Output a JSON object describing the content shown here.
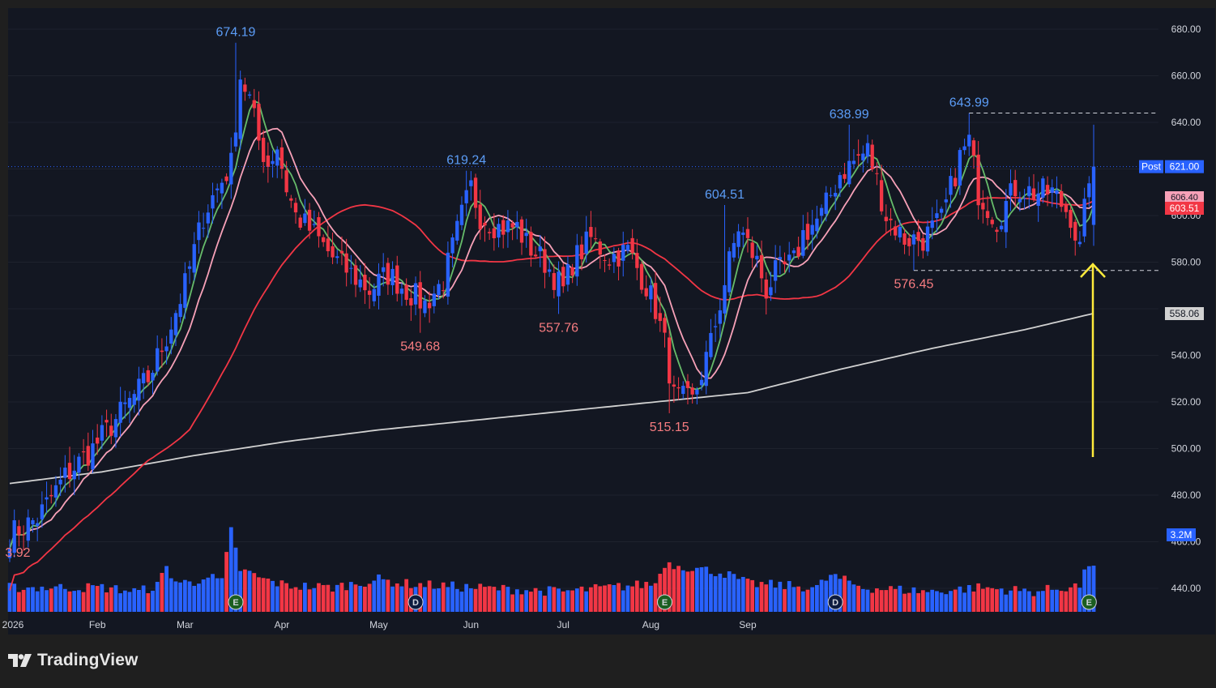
{
  "brand": {
    "name": "TradingView",
    "logo_icon": "tradingview-logo-icon"
  },
  "colors": {
    "background": "#131722",
    "frame": "#1f1f1f",
    "up": "#2962ff",
    "down": "#f23645",
    "ma_green": "#66bb6a",
    "ma_pink": "#f7a1b8",
    "ma_red": "#f23645",
    "ma_gray": "#d1d1d1",
    "annotation_arrow": "#ffeb3b"
  },
  "x_axis": {
    "labels": [
      "2026",
      "Feb",
      "Mar",
      "Apr",
      "May",
      "Jun",
      "Jul",
      "Aug",
      "Sep"
    ]
  },
  "y_axis": {
    "ticks": [
      "680.00",
      "660.00",
      "640.00",
      "600.00",
      "580.00",
      "540.00",
      "520.00",
      "500.00",
      "480.00",
      "460.00",
      "440.00"
    ]
  },
  "price_tags": {
    "post_label": "Post",
    "post_value": "621.00",
    "ma_value_1": "606.40",
    "ma_value_2": "603.51",
    "ma_long_value": "558.06",
    "volume_value": "3.2M"
  },
  "chart_data": {
    "type": "candlestick",
    "title": "",
    "ylim": [
      432,
      686
    ],
    "extreme_labels": [
      {
        "label": "674.19",
        "value": 674.19,
        "kind": "high",
        "date_index": 49
      },
      {
        "label": "619.24",
        "value": 619.24,
        "kind": "high",
        "date_index": 99
      },
      {
        "label": "604.51",
        "value": 604.51,
        "kind": "high",
        "date_index": 155
      },
      {
        "label": "638.99",
        "value": 638.99,
        "kind": "high",
        "date_index": 182
      },
      {
        "label": "643.99",
        "value": 643.99,
        "kind": "high",
        "date_index": 208
      },
      {
        "label": "549.68",
        "value": 549.68,
        "kind": "low",
        "date_index": 89
      },
      {
        "label": "557.76",
        "value": 557.76,
        "kind": "low",
        "date_index": 119
      },
      {
        "label": "515.15",
        "value": 515.15,
        "kind": "low",
        "date_index": 143
      },
      {
        "label": "576.45",
        "value": 576.45,
        "kind": "low",
        "date_index": 196
      },
      {
        "label": "3.92",
        "value": null,
        "kind": "low",
        "date_index": 1
      }
    ],
    "reference_lines": [
      {
        "value": 643.99,
        "style": "dashed"
      },
      {
        "value": 576.45,
        "style": "dashed"
      },
      {
        "value": 621.0,
        "style": "dotted"
      }
    ],
    "price_anchors": [
      [
        0,
        463
      ],
      [
        6,
        470
      ],
      [
        12,
        488
      ],
      [
        18,
        500
      ],
      [
        22,
        510
      ],
      [
        26,
        520
      ],
      [
        30,
        530
      ],
      [
        34,
        548
      ],
      [
        38,
        570
      ],
      [
        42,
        600
      ],
      [
        44,
        608
      ],
      [
        48,
        622
      ],
      [
        50,
        660
      ],
      [
        52,
        650
      ],
      [
        54,
        632
      ],
      [
        56,
        622
      ],
      [
        58,
        630
      ],
      [
        60,
        612
      ],
      [
        62,
        600
      ],
      [
        66,
        592
      ],
      [
        70,
        582
      ],
      [
        74,
        575
      ],
      [
        78,
        568
      ],
      [
        82,
        575
      ],
      [
        86,
        568
      ],
      [
        90,
        562
      ],
      [
        94,
        572
      ],
      [
        98,
        600
      ],
      [
        100,
        612
      ],
      [
        102,
        600
      ],
      [
        106,
        595
      ],
      [
        110,
        595
      ],
      [
        112,
        588
      ],
      [
        116,
        580
      ],
      [
        120,
        568
      ],
      [
        122,
        580
      ],
      [
        126,
        590
      ],
      [
        130,
        582
      ],
      [
        134,
        585
      ],
      [
        138,
        570
      ],
      [
        140,
        560
      ],
      [
        142,
        545
      ],
      [
        144,
        522
      ],
      [
        148,
        520
      ],
      [
        152,
        545
      ],
      [
        156,
        580
      ],
      [
        158,
        595
      ],
      [
        162,
        580
      ],
      [
        164,
        568
      ],
      [
        166,
        575
      ],
      [
        170,
        580
      ],
      [
        172,
        592
      ],
      [
        176,
        600
      ],
      [
        180,
        618
      ],
      [
        184,
        625
      ],
      [
        186,
        628
      ],
      [
        188,
        615
      ],
      [
        190,
        600
      ],
      [
        194,
        590
      ],
      [
        198,
        590
      ],
      [
        202,
        598
      ],
      [
        206,
        625
      ],
      [
        208,
        632
      ],
      [
        210,
        610
      ],
      [
        214,
        598
      ],
      [
        218,
        612
      ],
      [
        222,
        610
      ],
      [
        226,
        610
      ],
      [
        230,
        600
      ],
      [
        232,
        585
      ],
      [
        234,
        618
      ]
    ],
    "volume_anchors": [
      [
        0,
        1.2
      ],
      [
        10,
        1.2
      ],
      [
        20,
        1.2
      ],
      [
        28,
        1.0
      ],
      [
        32,
        1.3
      ],
      [
        34,
        2.2
      ],
      [
        36,
        1.5
      ],
      [
        40,
        1.4
      ],
      [
        42,
        1.8
      ],
      [
        46,
        1.5
      ],
      [
        48,
        4.0
      ],
      [
        50,
        2.1
      ],
      [
        55,
        1.6
      ],
      [
        60,
        1.3
      ],
      [
        70,
        1.2
      ],
      [
        80,
        1.6
      ],
      [
        85,
        1.4
      ],
      [
        100,
        1.2
      ],
      [
        120,
        1.0
      ],
      [
        140,
        1.4
      ],
      [
        142,
        2.4
      ],
      [
        150,
        2.1
      ],
      [
        155,
        1.9
      ],
      [
        160,
        1.4
      ],
      [
        175,
        1.2
      ],
      [
        178,
        1.8
      ],
      [
        185,
        1.2
      ],
      [
        200,
        1.0
      ],
      [
        210,
        1.2
      ],
      [
        222,
        1.0
      ],
      [
        232,
        1.3
      ],
      [
        234,
        2.4
      ]
    ],
    "event_markers": [
      {
        "label": "E",
        "date_index": 49
      },
      {
        "label": "D",
        "date_index": 88
      },
      {
        "label": "D",
        "date_index": 179
      },
      {
        "label": "E",
        "date_index": 142
      },
      {
        "label": "E",
        "date_index": 234
      }
    ]
  }
}
